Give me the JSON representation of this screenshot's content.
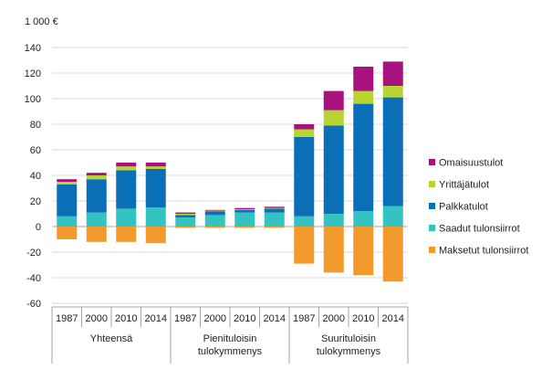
{
  "chart_data": {
    "type": "bar",
    "stacked": true,
    "y_unit_label": "1 000 €",
    "ylim": [
      -60,
      140
    ],
    "yticks": [
      -60,
      -40,
      -20,
      0,
      20,
      40,
      60,
      80,
      100,
      120,
      140
    ],
    "groups": [
      {
        "label": "Yhteensä",
        "categories": [
          "1987",
          "2000",
          "2010",
          "2014"
        ]
      },
      {
        "label": "Pienituloisin tulokymmenys",
        "label_lines": [
          "Pienituloisin",
          "tulokymmenys"
        ],
        "categories": [
          "1987",
          "2000",
          "2010",
          "2014"
        ]
      },
      {
        "label": "Suurituloisin tulokymmenys",
        "label_lines": [
          "Suurituloisin",
          "tulokymmenys"
        ],
        "categories": [
          "1987",
          "2000",
          "2010",
          "2014"
        ]
      }
    ],
    "series": [
      {
        "name": "Saadut tulonsiirrot",
        "color": "#33c3c0",
        "values": [
          8,
          11,
          14,
          15,
          7,
          9,
          11,
          11,
          8,
          10,
          12,
          16
        ]
      },
      {
        "name": "Palkkatulot",
        "color": "#0b6fb8",
        "values": [
          25,
          26,
          30,
          30,
          2,
          3,
          2,
          3,
          62,
          69,
          84,
          85
        ]
      },
      {
        "name": "Yrittäjätulot",
        "color": "#b8d433",
        "values": [
          2,
          3,
          3,
          2,
          1,
          0.5,
          0.5,
          0.5,
          6,
          12,
          10,
          9
        ]
      },
      {
        "name": "Omaisuustulot",
        "color": "#a8127f",
        "values": [
          2,
          2,
          3,
          3,
          1,
          0.5,
          1,
          1,
          4,
          15,
          19,
          19
        ]
      },
      {
        "name": "Maksetut tulonsiirrot",
        "color": "#f39a2c",
        "values": [
          -10,
          -12,
          -12,
          -13,
          -1,
          -1,
          -1,
          -1,
          -29,
          -36,
          -38,
          -43
        ]
      }
    ],
    "legend_order": [
      "Omaisuustulot",
      "Yrittäjätulot",
      "Palkkatulot",
      "Saadut tulonsiirrot",
      "Maksetut tulonsiirrot"
    ],
    "legend_position": "right",
    "grid": true
  }
}
